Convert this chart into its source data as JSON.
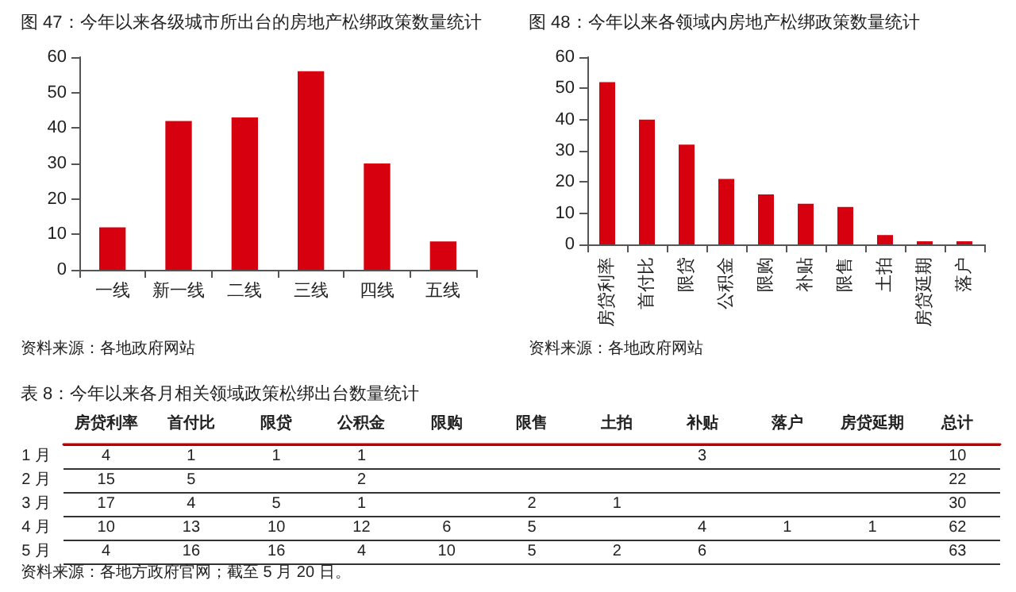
{
  "chart_data": [
    {
      "type": "bar",
      "title": "图 47：今年以来各级城市所出台的房地产松绑政策数量统计",
      "categories": [
        "一线",
        "新一线",
        "二线",
        "三线",
        "四线",
        "五线"
      ],
      "values": [
        12,
        42,
        43,
        56,
        30,
        8
      ],
      "color": "#d7000f",
      "ylim": [
        0,
        60
      ],
      "yticks": [
        0,
        10,
        20,
        30,
        40,
        50,
        60
      ],
      "grid": false,
      "annotations": [
        "资料来源：各地政府网站"
      ]
    },
    {
      "type": "bar",
      "title": "图 48：今年以来各领域内房地产松绑政策数量统计",
      "categories": [
        "房贷利率",
        "首付比",
        "限贷",
        "公积金",
        "限购",
        "补贴",
        "限售",
        "土拍",
        "房贷延期",
        "落户"
      ],
      "values": [
        52,
        40,
        32,
        21,
        16,
        13,
        12,
        3,
        1,
        1
      ],
      "color": "#d7000f",
      "ylim": [
        0,
        60
      ],
      "yticks": [
        0,
        10,
        20,
        30,
        40,
        50,
        60
      ],
      "grid": false,
      "annotations": [
        "资料来源：各地政府网站"
      ]
    },
    {
      "type": "heatmap",
      "title": "表 8：今年以来各月相关领域政策松绑出台数量统计",
      "categories": [
        "房贷利率",
        "首付比",
        "限贷",
        "公积金",
        "限购",
        "限售",
        "土拍",
        "补贴",
        "落户",
        "房贷延期",
        "总计"
      ],
      "y_categories": [
        "1 月",
        "2 月",
        "3 月",
        "4 月",
        "5 月"
      ],
      "cells": [
        [
          4,
          1,
          1,
          1,
          null,
          null,
          null,
          3,
          null,
          null,
          10
        ],
        [
          15,
          5,
          null,
          2,
          null,
          null,
          null,
          null,
          null,
          null,
          22
        ],
        [
          17,
          4,
          5,
          1,
          null,
          2,
          1,
          null,
          null,
          null,
          30
        ],
        [
          10,
          13,
          10,
          12,
          6,
          5,
          null,
          4,
          1,
          1,
          62
        ],
        [
          4,
          16,
          16,
          4,
          10,
          5,
          2,
          6,
          null,
          null,
          63
        ]
      ],
      "data_labels": true,
      "grid": "y",
      "annotations": [
        "资料来源：各地方政府官网；截至 5 月 20 日。"
      ]
    }
  ]
}
